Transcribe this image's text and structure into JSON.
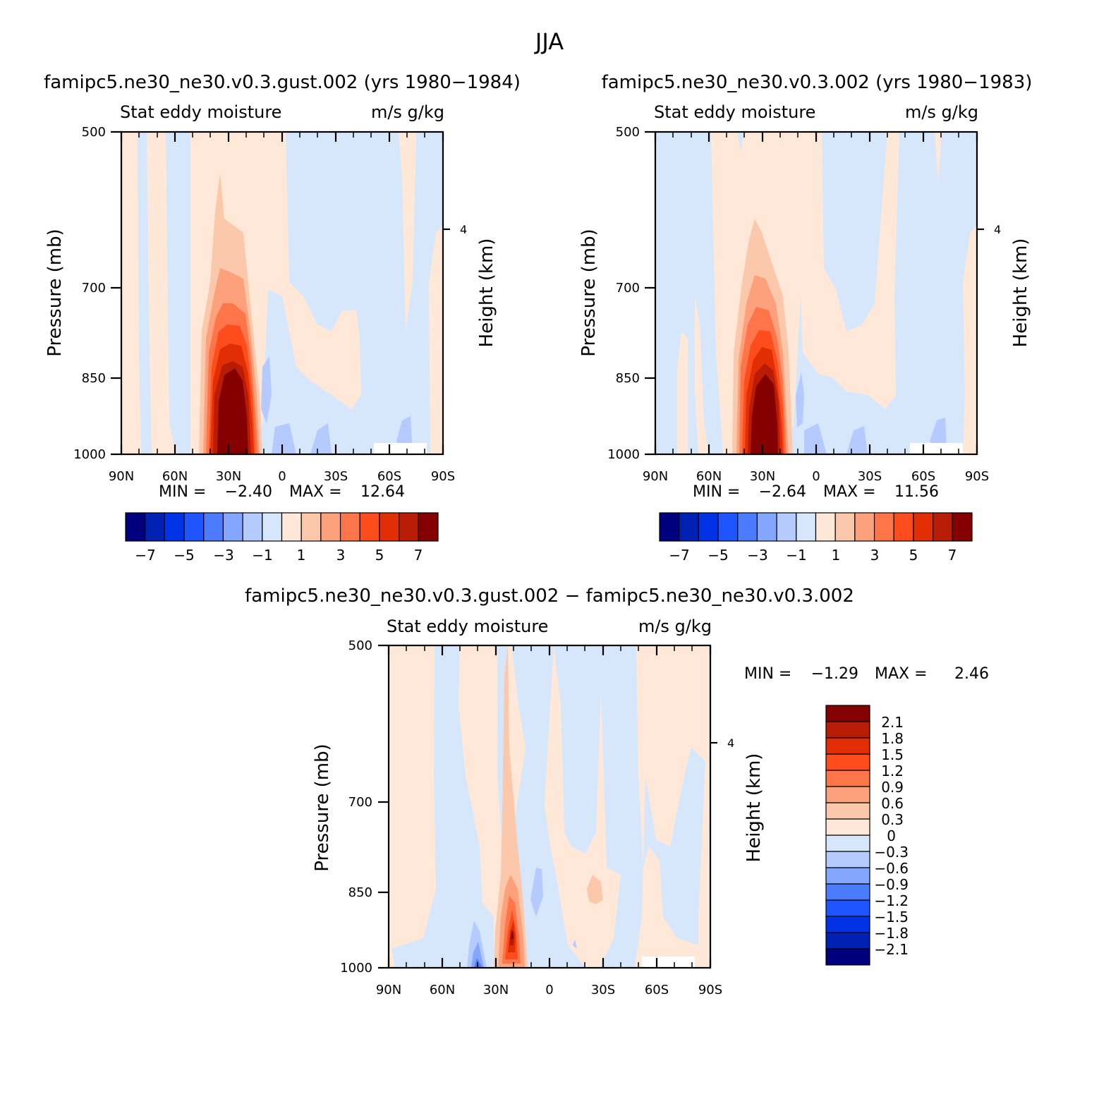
{
  "figure": {
    "title": "JJA"
  },
  "colors": {
    "abs_palette": [
      "#00007f",
      "#0021b2",
      "#0033e6",
      "#1f55ff",
      "#4b7cff",
      "#85a6ff",
      "#b5caff",
      "#d6e7fb",
      "#ffe8d8",
      "#fcc8ab",
      "#fca17c",
      "#fd7548",
      "#fd4d1c",
      "#e22e05",
      "#b81b06",
      "#850000"
    ],
    "diff_palette": [
      "#00007f",
      "#0021b2",
      "#0033e6",
      "#1f55ff",
      "#4b7cff",
      "#85a6ff",
      "#b5caff",
      "#d6e7fb",
      "#ffe8d8",
      "#fcc8ab",
      "#fca17c",
      "#fd7548",
      "#fd4d1c",
      "#e22e05",
      "#b81b06",
      "#850000"
    ]
  },
  "panels": [
    {
      "case_title": "famipc5.ne30_ne30.v0.3.gust.002 (yrs 1980−1984)",
      "left_string": "Stat eddy moisture",
      "right_string": "m/s g/kg",
      "y_label": "Pressure (mb)",
      "y2_label": "Height (km)",
      "y_ticks": [
        "500",
        "700",
        "850",
        "1000"
      ],
      "y2_ticks": [
        "4"
      ],
      "x_ticks": [
        "90N",
        "60N",
        "30N",
        "0",
        "30S",
        "60S",
        "90S"
      ],
      "min_label": "MIN =",
      "min_value": "−2.40",
      "max_label": "MAX =",
      "max_value": "12.64",
      "colorbar_ticks": [
        "−7",
        "−5",
        "−3",
        "−1",
        "1",
        "3",
        "5",
        "7"
      ]
    },
    {
      "case_title": "famipc5.ne30_ne30.v0.3.002 (yrs 1980−1983)",
      "left_string": "Stat eddy moisture",
      "right_string": "m/s g/kg",
      "y_label": "Pressure (mb)",
      "y2_label": "Height (km)",
      "y_ticks": [
        "500",
        "700",
        "850",
        "1000"
      ],
      "y2_ticks": [
        "4"
      ],
      "x_ticks": [
        "90N",
        "60N",
        "30N",
        "0",
        "30S",
        "60S",
        "90S"
      ],
      "min_label": "MIN =",
      "min_value": "−2.64",
      "max_label": "MAX =",
      "max_value": "11.56",
      "colorbar_ticks": [
        "−7",
        "−5",
        "−3",
        "−1",
        "1",
        "3",
        "5",
        "7"
      ]
    },
    {
      "case_title": "famipc5.ne30_ne30.v0.3.gust.002 − famipc5.ne30_ne30.v0.3.002",
      "left_string": "Stat eddy moisture",
      "right_string": "m/s g/kg",
      "y_label": "Pressure (mb)",
      "y2_label": "Height (km)",
      "y_ticks": [
        "500",
        "700",
        "850",
        "1000"
      ],
      "y2_ticks": [
        "4"
      ],
      "x_ticks": [
        "90N",
        "60N",
        "30N",
        "0",
        "30S",
        "60S",
        "90S"
      ],
      "min_label": "MIN =",
      "min_value": "−1.29",
      "max_label": "MAX =",
      "max_value": "2.46",
      "colorbar_ticks": [
        "2.1",
        "1.8",
        "1.5",
        "1.2",
        "0.9",
        "0.6",
        "0.3",
        "0",
        "−0.3",
        "−0.6",
        "−0.9",
        "−1.2",
        "−1.5",
        "−1.8",
        "−2.1"
      ]
    }
  ],
  "chart_data": [
    {
      "type": "heatmap",
      "title": "famipc5.ne30_ne30.v0.3.gust.002 (yrs 1980−1984)",
      "xlabel": "",
      "ylabel": "Pressure (mb)",
      "y2label": "Height (km)",
      "x_range": [
        "90N",
        "90S"
      ],
      "ylim": [
        500,
        1000
      ],
      "y_reversed": true,
      "levels": [
        -7,
        -6,
        -5,
        -4,
        -3,
        -2,
        -1,
        0,
        1,
        2,
        3,
        4,
        5,
        6,
        7
      ],
      "min": -2.4,
      "max": 12.64,
      "features": [
        {
          "lat": 30,
          "p_top": 560,
          "p_bottom": 1000,
          "peak": 12.64,
          "sign": "positive"
        },
        {
          "lat": 70,
          "p_top": 500,
          "p_bottom": 1000,
          "value": 0.5,
          "sign": "positive"
        },
        {
          "lat": 35,
          "p_top": 500,
          "p_bottom": 1000,
          "value": 0.5,
          "sign": "positive"
        },
        {
          "lat": -15,
          "p_top": 720,
          "p_bottom": 850,
          "value": 0.5,
          "sign": "positive"
        },
        {
          "lat": 8,
          "p_top": 840,
          "p_bottom": 960,
          "value": -1.5,
          "sign": "negative"
        },
        {
          "lat": -70,
          "p_top": 960,
          "p_bottom": 1000,
          "min": -2.4,
          "sign": "negative"
        }
      ]
    },
    {
      "type": "heatmap",
      "title": "famipc5.ne30_ne30.v0.3.002 (yrs 1980−1983)",
      "xlabel": "",
      "ylabel": "Pressure (mb)",
      "y2label": "Height (km)",
      "x_range": [
        "90N",
        "90S"
      ],
      "ylim": [
        500,
        1000
      ],
      "y_reversed": true,
      "levels": [
        -7,
        -6,
        -5,
        -4,
        -3,
        -2,
        -1,
        0,
        1,
        2,
        3,
        4,
        5,
        6,
        7
      ],
      "min": -2.64,
      "max": 11.56,
      "features": [
        {
          "lat": 28,
          "p_top": 560,
          "p_bottom": 1000,
          "peak": 11.56,
          "sign": "positive"
        },
        {
          "lat": 40,
          "p_top": 500,
          "p_bottom": 1000,
          "value": 0.5,
          "sign": "positive"
        },
        {
          "lat": -15,
          "p_top": 720,
          "p_bottom": 850,
          "value": 0.5,
          "sign": "positive"
        },
        {
          "lat": 8,
          "p_top": 850,
          "p_bottom": 960,
          "value": -1.5,
          "sign": "negative"
        },
        {
          "lat": -70,
          "p_top": 960,
          "p_bottom": 1000,
          "min": -2.64,
          "sign": "negative"
        }
      ]
    },
    {
      "type": "heatmap",
      "title": "famipc5.ne30_ne30.v0.3.gust.002 − famipc5.ne30_ne30.v0.3.002",
      "xlabel": "",
      "ylabel": "Pressure (mb)",
      "y2label": "Height (km)",
      "x_range": [
        "90N",
        "90S"
      ],
      "ylim": [
        500,
        1000
      ],
      "y_reversed": true,
      "levels": [
        -2.1,
        -1.8,
        -1.5,
        -1.2,
        -0.9,
        -0.6,
        -0.3,
        0,
        0.3,
        0.6,
        0.9,
        1.2,
        1.5,
        1.8,
        2.1
      ],
      "min": -1.29,
      "max": 2.46,
      "features": [
        {
          "lat": 20,
          "p_top": 840,
          "p_bottom": 1000,
          "peak": 2.46,
          "sign": "positive"
        },
        {
          "lat": 39,
          "p_top": 960,
          "p_bottom": 1000,
          "min": -1.29,
          "sign": "negative"
        },
        {
          "lat": 8,
          "p_top": 830,
          "p_bottom": 900,
          "value": -0.6,
          "sign": "negative"
        },
        {
          "lat": -27,
          "p_top": 830,
          "p_bottom": 880,
          "value": 0.5,
          "sign": "positive"
        }
      ]
    }
  ]
}
